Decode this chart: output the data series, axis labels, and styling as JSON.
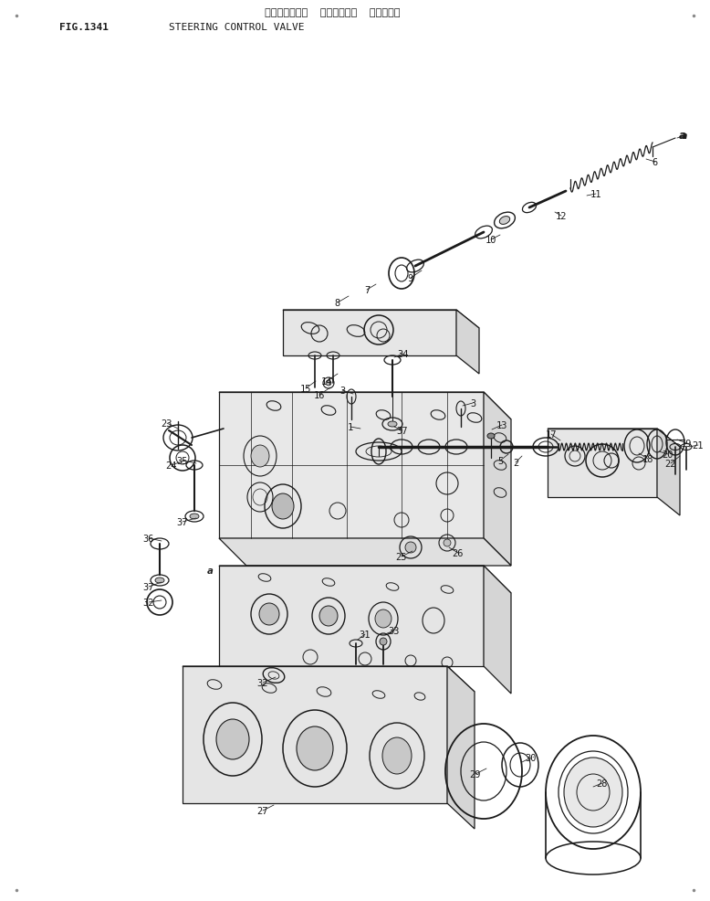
{
  "title_japanese": "ステアリング゜  コントロール  ハ゜ルフ゜",
  "title_english": "STEERING CONTROL VALVE",
  "fig_label": "FIG.1341",
  "bg": "#ffffff",
  "lc": "#1a1a1a",
  "figsize": [
    7.78,
    9.87
  ],
  "dpi": 100
}
